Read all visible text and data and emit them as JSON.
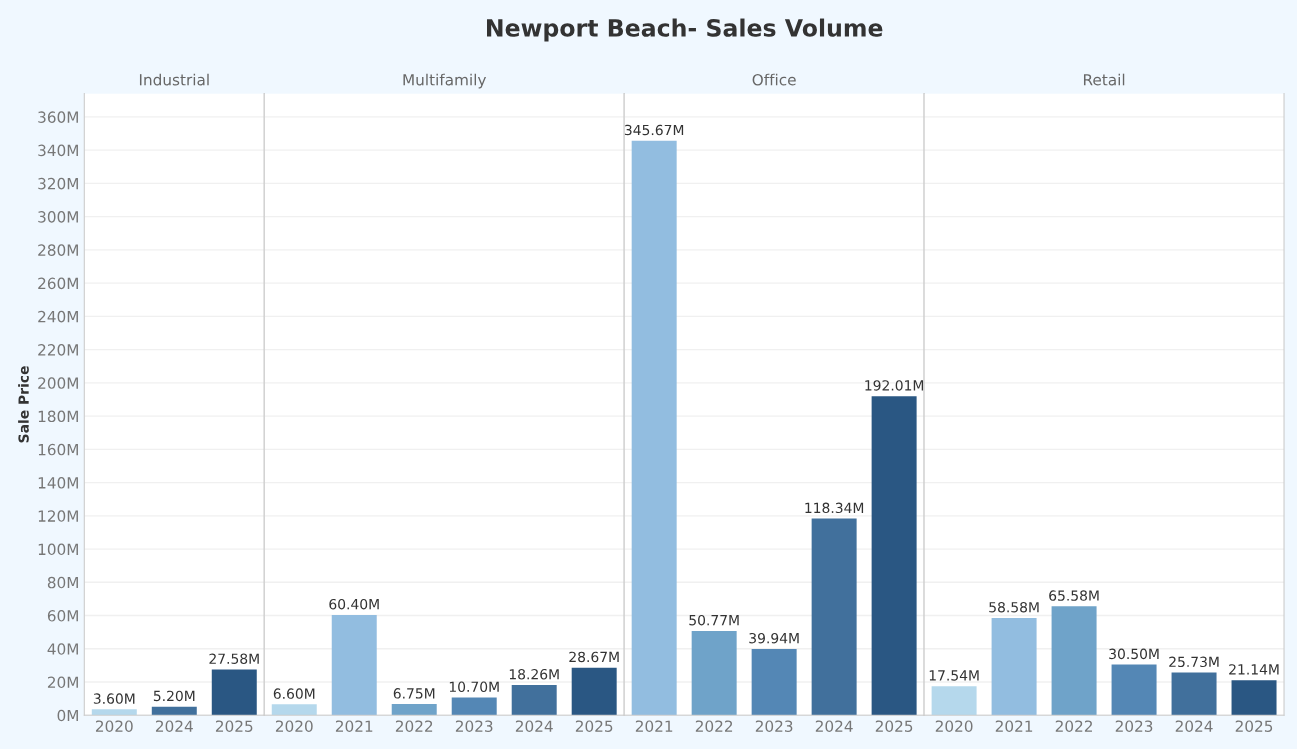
{
  "chart_data": [
    {
      "type": "other",
      "title": "Newport Beach- Sales Volume"
    },
    {
      "type": "bar",
      "subtitle": "Industrial",
      "ylabel": "Sale Price",
      "categories": [
        "2020",
        "2024",
        "2025"
      ],
      "values": [
        3.6,
        5.2,
        27.58
      ],
      "colors": [
        "#b5d8ec",
        "#41709c",
        "#2a5783"
      ],
      "value_labels": [
        "3.60M",
        "5.20M",
        "27.58M"
      ],
      "ylim": [
        0,
        374
      ],
      "yticks": [
        {
          "value": 0,
          "label": "0M"
        },
        {
          "value": 20,
          "label": "20M"
        },
        {
          "value": 40,
          "label": "40M"
        },
        {
          "value": 60,
          "label": "60M"
        },
        {
          "value": 80,
          "label": "80M"
        },
        {
          "value": 100,
          "label": "100M"
        },
        {
          "value": 120,
          "label": "120M"
        },
        {
          "value": 140,
          "label": "140M"
        },
        {
          "value": 160,
          "label": "160M"
        },
        {
          "value": 180,
          "label": "180M"
        },
        {
          "value": 200,
          "label": "200M"
        },
        {
          "value": 220,
          "label": "220M"
        },
        {
          "value": 240,
          "label": "240M"
        },
        {
          "value": 260,
          "label": "260M"
        },
        {
          "value": 280,
          "label": "280M"
        },
        {
          "value": 300,
          "label": "300M"
        },
        {
          "value": 320,
          "label": "320M"
        },
        {
          "value": 340,
          "label": "340M"
        },
        {
          "value": 360,
          "label": "360M"
        }
      ],
      "grid": "y"
    },
    {
      "type": "bar",
      "subtitle": "Multifamily",
      "categories": [
        "2020",
        "2021",
        "2022",
        "2023",
        "2024",
        "2025"
      ],
      "values": [
        6.6,
        60.4,
        6.75,
        10.7,
        18.26,
        28.67
      ],
      "colors": [
        "#b5d8ec",
        "#92bde0",
        "#6fa3c9",
        "#5487b5",
        "#41709c",
        "#2a5783"
      ],
      "value_labels": [
        "6.60M",
        "60.40M",
        "6.75M",
        "10.70M",
        "18.26M",
        "28.67M"
      ],
      "ylim": [
        0,
        374
      ],
      "yticks": [
        0,
        20,
        40,
        60,
        80,
        100,
        120,
        140,
        160,
        180,
        200,
        220,
        240,
        260,
        280,
        300,
        320,
        340,
        360
      ],
      "grid": "y",
      "tick_labels": "x"
    },
    {
      "type": "bar",
      "subtitle": "Office",
      "categories": [
        "2021",
        "2022",
        "2023",
        "2024",
        "2025"
      ],
      "values": [
        345.67,
        50.77,
        39.94,
        118.34,
        192.01
      ],
      "colors": [
        "#92bde0",
        "#6fa3c9",
        "#5487b5",
        "#41709c",
        "#2a5783"
      ],
      "value_labels": [
        "345.67M",
        "50.77M",
        "39.94M",
        "118.34M",
        "192.01M"
      ],
      "ylim": [
        0,
        374
      ],
      "yticks": [
        0,
        20,
        40,
        60,
        80,
        100,
        120,
        140,
        160,
        180,
        200,
        220,
        240,
        260,
        280,
        300,
        320,
        340,
        360
      ],
      "grid": "y",
      "tick_labels": "x"
    },
    {
      "type": "bar",
      "subtitle": "Retail",
      "categories": [
        "2020",
        "2021",
        "2022",
        "2023",
        "2024",
        "2025"
      ],
      "values": [
        17.54,
        58.58,
        65.58,
        30.5,
        25.73,
        21.14
      ],
      "colors": [
        "#b5d8ec",
        "#92bde0",
        "#6fa3c9",
        "#5487b5",
        "#41709c",
        "#2a5783"
      ],
      "value_labels": [
        "17.54M",
        "58.58M",
        "65.58M",
        "30.50M",
        "25.73M",
        "21.14M"
      ],
      "ylim": [
        0,
        374
      ],
      "yticks": [
        0,
        20,
        40,
        60,
        80,
        100,
        120,
        140,
        160,
        180,
        200,
        220,
        240,
        260,
        280,
        300,
        320,
        340,
        360
      ],
      "grid": "y",
      "tick_labels": "x"
    }
  ]
}
